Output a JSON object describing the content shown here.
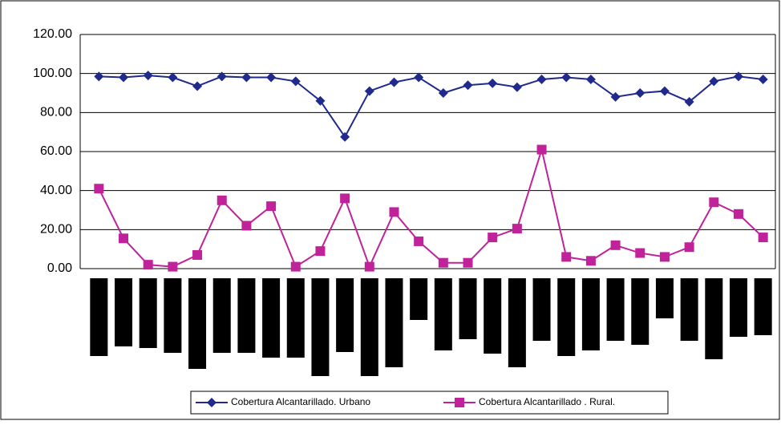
{
  "chart_data": {
    "type": "line",
    "categories": [
      null,
      null,
      null,
      null,
      null,
      null,
      null,
      null,
      null,
      null,
      null,
      null,
      null,
      null,
      null,
      null,
      null,
      null,
      null,
      null,
      null,
      null,
      null,
      null,
      null,
      null,
      null,
      null
    ],
    "series": [
      {
        "name": "Cobertura Alcantarillado. Urbano",
        "color": "#1f2a8c",
        "marker": "diamond",
        "values": [
          98.5,
          98,
          99,
          98,
          93.5,
          98.5,
          98,
          98,
          96,
          86,
          67.5,
          91,
          95.5,
          98,
          90,
          94,
          95,
          93,
          97,
          98,
          97,
          88,
          90,
          91,
          85.5,
          96,
          98.5,
          97
        ]
      },
      {
        "name": "Cobertura Alcantarillado . Rural.",
        "color": "#c0229a",
        "marker": "square",
        "values": [
          41,
          15.5,
          2,
          1,
          7,
          35,
          22,
          32,
          1,
          9,
          36,
          1,
          29,
          14,
          3,
          3,
          16,
          20.5,
          61,
          6,
          4,
          12,
          8,
          6,
          11,
          34,
          28,
          16
        ]
      }
    ],
    "ylim": [
      0,
      120
    ],
    "yticks": [
      {
        "value": 0,
        "label": "0.00"
      },
      {
        "value": 20,
        "label": "20.00"
      },
      {
        "value": 40,
        "label": "40.00"
      },
      {
        "value": 60,
        "label": "60.00"
      },
      {
        "value": 80,
        "label": "80.00"
      },
      {
        "value": 100,
        "label": "100.00"
      },
      {
        "value": 120,
        "label": "120.00"
      }
    ],
    "grid": true,
    "legend": "bottom"
  }
}
